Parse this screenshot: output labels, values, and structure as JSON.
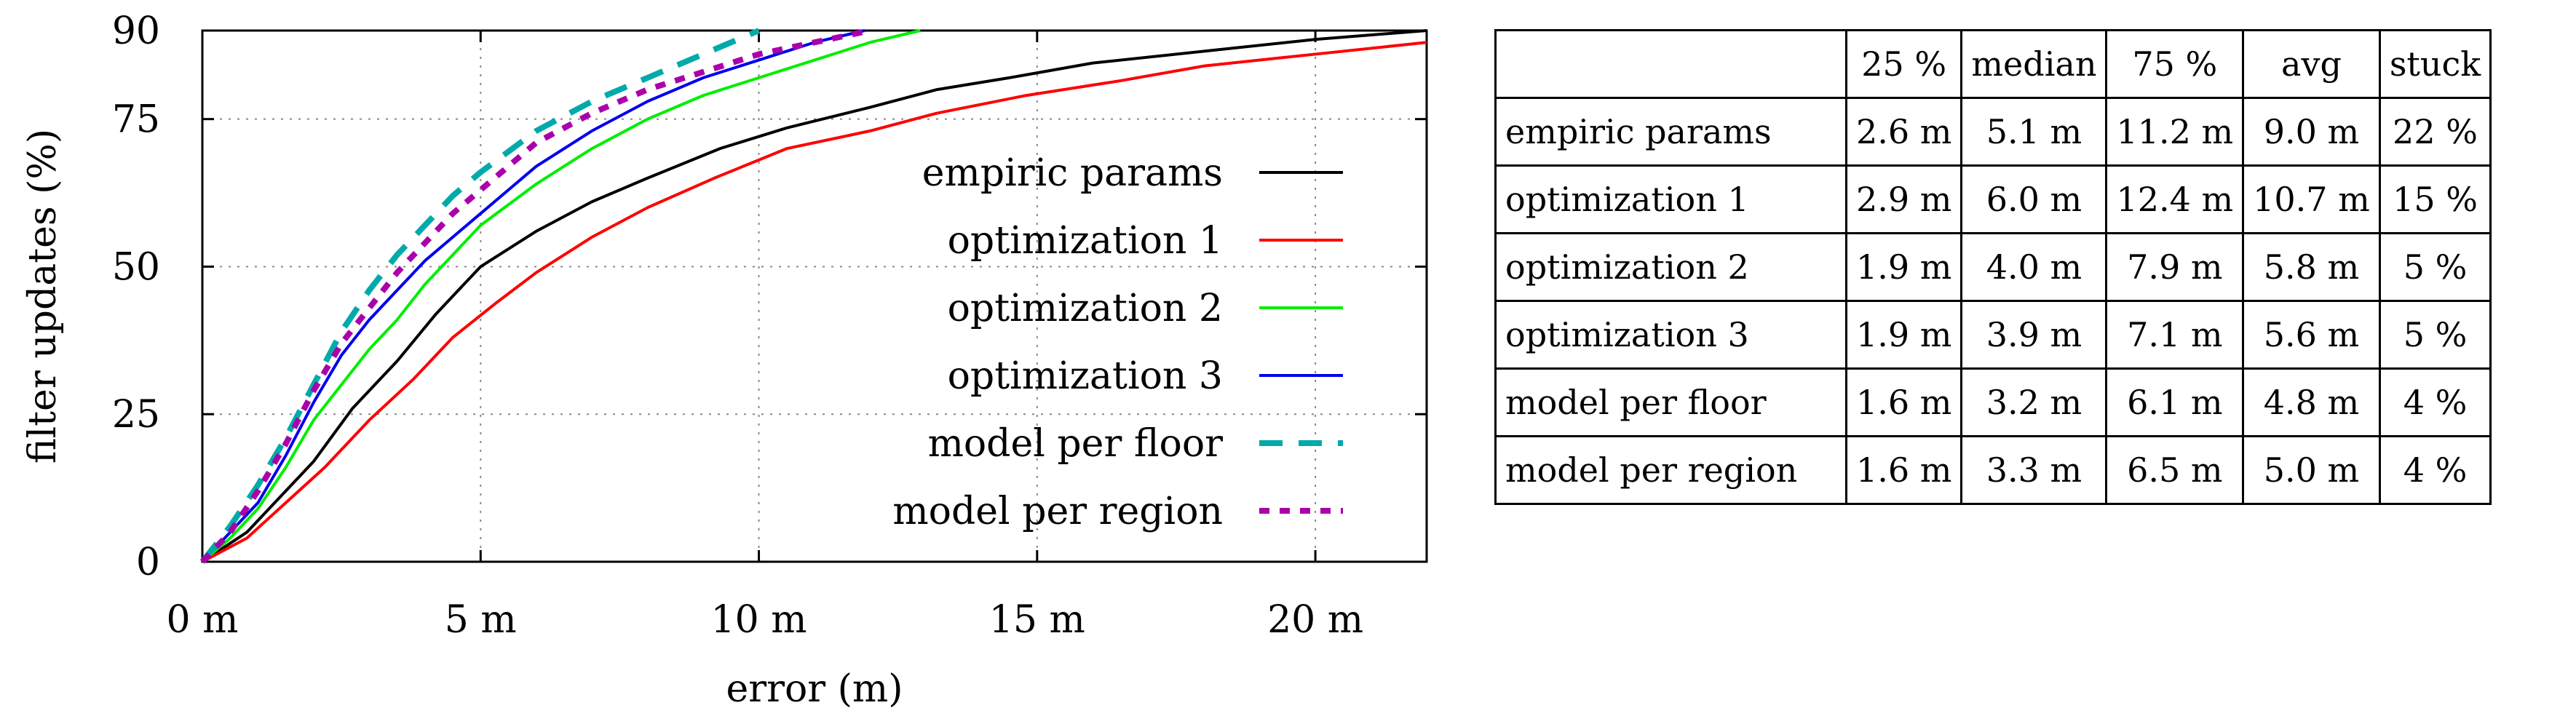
{
  "chart_data": {
    "type": "line",
    "xlabel": "error (m)",
    "ylabel": "filter updates (%)",
    "xlim": [
      0,
      22
    ],
    "ylim": [
      0,
      90
    ],
    "xticks": [
      0,
      5,
      10,
      15,
      20
    ],
    "xtick_labels": [
      "0 m",
      "5 m",
      "10 m",
      "15 m",
      "20 m"
    ],
    "yticks": [
      0,
      25,
      50,
      75,
      90
    ],
    "ytick_labels": [
      "0",
      "25",
      "50",
      "75",
      "90"
    ],
    "grid": "dotted",
    "legend_position": "inside lower-right",
    "series": [
      {
        "name": "empiric params",
        "color": "#000000",
        "dash": "solid",
        "x": [
          0,
          0.8,
          1.3,
          2,
          2.7,
          3.5,
          4.2,
          5,
          6,
          7,
          8,
          9.3,
          10.5,
          12,
          13.2,
          14.5,
          16,
          18,
          20,
          22
        ],
        "y": [
          0,
          5,
          10,
          17,
          26,
          34,
          42,
          50,
          56,
          61,
          65,
          70,
          73.5,
          77,
          80,
          82,
          84.5,
          86.5,
          88.5,
          90
        ]
      },
      {
        "name": "optimization 1",
        "color": "#ff0000",
        "dash": "solid",
        "x": [
          0,
          0.8,
          1.5,
          2.2,
          3,
          3.8,
          4.5,
          5.3,
          6,
          7,
          8,
          9.2,
          10.5,
          12,
          13.2,
          14.8,
          16.5,
          18,
          20,
          22
        ],
        "y": [
          0,
          4,
          10,
          16,
          24,
          31,
          38,
          44,
          49,
          55,
          60,
          65,
          70,
          73,
          76,
          79,
          81.5,
          84,
          86,
          88
        ]
      },
      {
        "name": "optimization 2",
        "color": "#00ee00",
        "dash": "solid",
        "x": [
          0,
          0.5,
          1,
          1.5,
          2,
          2.5,
          3,
          3.5,
          4,
          4.5,
          5,
          6,
          7,
          8,
          9,
          10,
          11,
          12,
          12.9
        ],
        "y": [
          0,
          4,
          9,
          16,
          24,
          30,
          36,
          41,
          47,
          52,
          57,
          64,
          70,
          75,
          79,
          82,
          85,
          88,
          90
        ]
      },
      {
        "name": "optimization 3",
        "color": "#0000ee",
        "dash": "solid",
        "x": [
          0,
          0.5,
          1,
          1.5,
          2,
          2.5,
          3,
          3.5,
          4,
          4.5,
          5,
          6,
          7,
          8,
          9,
          10,
          11,
          11.9
        ],
        "y": [
          0,
          5,
          10,
          18,
          27,
          35,
          41,
          46,
          51,
          55,
          59,
          67,
          73,
          78,
          82,
          85,
          88,
          90
        ]
      },
      {
        "name": "model per floor",
        "color": "#00aaaa",
        "dash": "long",
        "x": [
          0,
          0.5,
          1,
          1.5,
          2,
          2.5,
          3,
          3.5,
          4,
          4.5,
          5,
          6,
          7,
          8,
          9,
          10
        ],
        "y": [
          0,
          6,
          13,
          21,
          30,
          39,
          46,
          52,
          57,
          62,
          66,
          73,
          78,
          82,
          86,
          90
        ]
      },
      {
        "name": "model per region",
        "color": "#aa00aa",
        "dash": "short",
        "x": [
          0,
          0.5,
          1,
          1.5,
          2,
          2.5,
          3,
          3.5,
          4,
          4.5,
          5,
          6,
          7,
          8,
          9,
          10,
          11,
          12
        ],
        "y": [
          0,
          5,
          12,
          20,
          29,
          37,
          43,
          49,
          54,
          59,
          63,
          71,
          76,
          80,
          83,
          86,
          88,
          90
        ]
      }
    ]
  },
  "table": {
    "headers": [
      "",
      "25 %",
      "median",
      "75 %",
      "avg",
      "stuck"
    ],
    "rows": [
      {
        "label": "empiric params",
        "cells": [
          "2.6 m",
          "5.1 m",
          "11.2 m",
          "9.0 m",
          "22 %"
        ]
      },
      {
        "label": "optimization 1",
        "cells": [
          "2.9 m",
          "6.0 m",
          "12.4 m",
          "10.7 m",
          "15 %"
        ]
      },
      {
        "label": "optimization 2",
        "cells": [
          "1.9 m",
          "4.0 m",
          "7.9 m",
          "5.8 m",
          "5 %"
        ]
      },
      {
        "label": "optimization 3",
        "cells": [
          "1.9 m",
          "3.9 m",
          "7.1 m",
          "5.6 m",
          "5 %"
        ]
      },
      {
        "label": "model per floor",
        "cells": [
          "1.6 m",
          "3.2 m",
          "6.1 m",
          "4.8 m",
          "4 %"
        ]
      },
      {
        "label": "model per region",
        "cells": [
          "1.6 m",
          "3.3 m",
          "6.5 m",
          "5.0 m",
          "4 %"
        ]
      }
    ]
  }
}
